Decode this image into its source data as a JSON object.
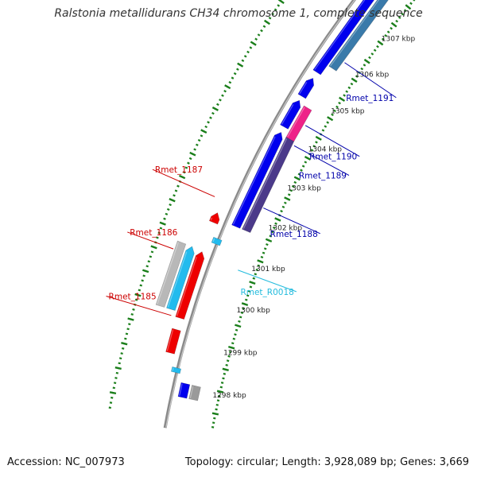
{
  "title": "Ralstonia metallidurans CH34 chromosome 1, complete sequence",
  "footer": {
    "accession": "Accession: NC_007973",
    "summary": "Topology: circular; Length: 3,928,089 bp; Genes: 3,669"
  },
  "colors": {
    "backbone": "#8a8a8a",
    "tick": "#1b7f1b",
    "forward_label": "#0000aa",
    "reverse_label": "#cc0000",
    "rna_label": "#22bbdd"
  },
  "kbp_ticks": [
    {
      "label": "1298 kbp",
      "pos": 1298
    },
    {
      "label": "1299 kbp",
      "pos": 1299
    },
    {
      "label": "1300 kbp",
      "pos": 1300
    },
    {
      "label": "1301 kbp",
      "pos": 1301
    },
    {
      "label": "1302 kbp",
      "pos": 1302
    },
    {
      "label": "1303 kbp",
      "pos": 1303
    },
    {
      "label": "1304 kbp",
      "pos": 1304
    },
    {
      "label": "1305 kbp",
      "pos": 1305
    },
    {
      "label": "1306 kbp",
      "pos": 1306
    },
    {
      "label": "1307 kbp",
      "pos": 1307
    }
  ],
  "features": [
    {
      "name": "gene-top-grey",
      "track": -2,
      "start": 1297.7,
      "end": 1298.0,
      "color": "#9a9a9a",
      "arrow": false
    },
    {
      "name": "gene-top-blue",
      "track": -1,
      "start": 1297.7,
      "end": 1298.0,
      "color": "#0000ee",
      "arrow": false
    },
    {
      "name": "rna-top",
      "track": 0.1,
      "start": 1298.18,
      "end": 1298.28,
      "color": "#22bbee",
      "arrow": false
    },
    {
      "name": "gene-rmet-1185",
      "track": 1,
      "start": 1298.55,
      "end": 1299.05,
      "color": "#ee0000",
      "arrow": false
    },
    {
      "name": "gene-rmet-1186-red",
      "track": 1,
      "start": 1299.3,
      "end": 1300.75,
      "color": "#ee0000",
      "arrow": true
    },
    {
      "name": "gene-rmet-1186-cyan",
      "track": 2,
      "start": 1299.42,
      "end": 1300.78,
      "color": "#22bbee",
      "arrow": true
    },
    {
      "name": "gene-rmet-1186-grey",
      "track": 3,
      "start": 1299.42,
      "end": 1300.78,
      "color": "#b8b8b8",
      "arrow": false
    },
    {
      "name": "rna-rmet-r0018",
      "track": 0.1,
      "start": 1301.0,
      "end": 1301.12,
      "color": "#22bbee",
      "arrow": false
    },
    {
      "name": "gene-rmet-1187",
      "track": 1,
      "start": 1301.4,
      "end": 1301.62,
      "color": "#ee0000",
      "arrow": true
    },
    {
      "name": "gene-rmet-1188-purple",
      "track": -2,
      "start": 1301.5,
      "end": 1303.68,
      "color": "#4b3a8a",
      "arrow": false
    },
    {
      "name": "gene-rmet-1188-blue",
      "track": -1,
      "start": 1301.5,
      "end": 1303.72,
      "color": "#0000ee",
      "arrow": true
    },
    {
      "name": "gene-rmet-1189-pink",
      "track": -2,
      "start": 1303.68,
      "end": 1304.45,
      "color": "#ee2288",
      "arrow": false
    },
    {
      "name": "gene-rmet-1190-blue",
      "track": -1,
      "start": 1303.85,
      "end": 1304.5,
      "color": "#0000ee",
      "arrow": true
    },
    {
      "name": "gene-blue-mid",
      "track": -1,
      "start": 1304.6,
      "end": 1305.05,
      "color": "#0000ee",
      "arrow": true
    },
    {
      "name": "gene-rmet-1191-steel",
      "track": -2,
      "start": 1305.45,
      "end": 1307.45,
      "color": "#3a7aaa",
      "arrow": false
    },
    {
      "name": "gene-rmet-1191-blue",
      "track": -1,
      "start": 1305.2,
      "end": 1307.4,
      "color": "#0000ee",
      "arrow": true
    },
    {
      "name": "gene-bottom-blue",
      "track": -1,
      "start": 1307.55,
      "end": 1307.8,
      "color": "#0000ee",
      "arrow": false
    },
    {
      "name": "gene-bottom-white",
      "track": -2,
      "start": 1307.55,
      "end": 1307.8,
      "color": "#d8d8f0",
      "arrow": false
    }
  ],
  "gene_labels": [
    {
      "text": "Rmet_1185",
      "pos": 1299.3,
      "strand": "reverse",
      "target_track": 1.8
    },
    {
      "text": "Rmet_1186",
      "pos": 1300.6,
      "strand": "reverse",
      "target_track": 3.5
    },
    {
      "text": "Rmet_1187",
      "pos": 1301.9,
      "strand": "reverse",
      "target_track": 1.8
    },
    {
      "text": "Rmet_R0018",
      "pos": 1300.65,
      "strand": "rna",
      "target_track": -2.6
    },
    {
      "text": "Rmet_1188",
      "pos": 1302.1,
      "strand": "forward",
      "target_track": -2.6
    },
    {
      "text": "Rmet_1189",
      "pos": 1303.6,
      "strand": "forward",
      "target_track": -2.6
    },
    {
      "text": "Rmet_1190",
      "pos": 1304.1,
      "strand": "forward",
      "target_track": -2.6
    },
    {
      "text": "Rmet_1191",
      "pos": 1305.7,
      "strand": "forward",
      "target_track": -2.6
    }
  ]
}
